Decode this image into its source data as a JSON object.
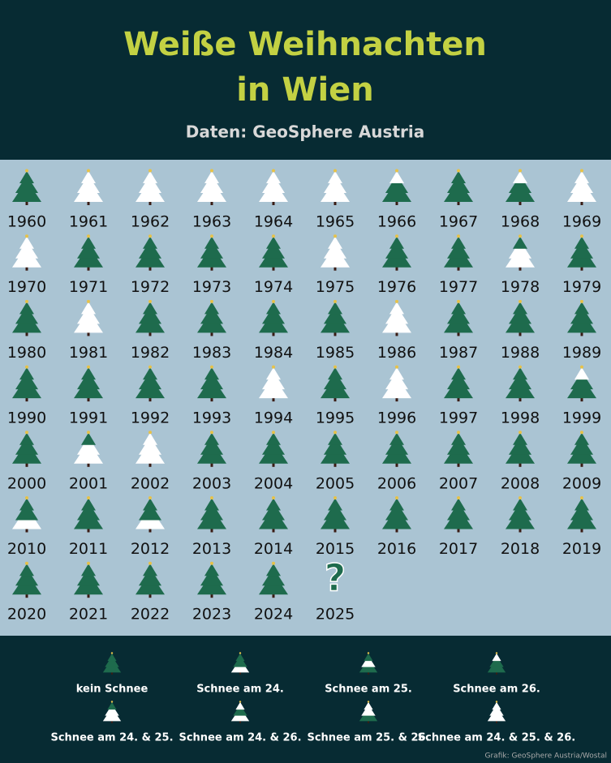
{
  "header": {
    "title": [
      "Weiße Weihnachten",
      "in Wien"
    ],
    "subtitle": "Daten: GeoSphere Austria"
  },
  "years": [
    {
      "year": "1960",
      "snow": []
    },
    {
      "year": "1961",
      "snow": [
        24,
        25,
        26
      ]
    },
    {
      "year": "1962",
      "snow": [
        24,
        25,
        26
      ]
    },
    {
      "year": "1963",
      "snow": [
        24,
        25,
        26
      ]
    },
    {
      "year": "1964",
      "snow": [
        24,
        25,
        26
      ]
    },
    {
      "year": "1965",
      "snow": [
        24,
        25,
        26
      ]
    },
    {
      "year": "1966",
      "snow": [
        26
      ]
    },
    {
      "year": "1967",
      "snow": []
    },
    {
      "year": "1968",
      "snow": [
        26
      ]
    },
    {
      "year": "1969",
      "snow": [
        24,
        25,
        26
      ]
    },
    {
      "year": "1970",
      "snow": [
        24,
        25,
        26
      ]
    },
    {
      "year": "1971",
      "snow": []
    },
    {
      "year": "1972",
      "snow": []
    },
    {
      "year": "1973",
      "snow": []
    },
    {
      "year": "1974",
      "snow": []
    },
    {
      "year": "1975",
      "snow": [
        24,
        25,
        26
      ]
    },
    {
      "year": "1976",
      "snow": []
    },
    {
      "year": "1977",
      "snow": []
    },
    {
      "year": "1978",
      "snow": [
        24,
        25
      ]
    },
    {
      "year": "1979",
      "snow": []
    },
    {
      "year": "1980",
      "snow": []
    },
    {
      "year": "1981",
      "snow": [
        24,
        25,
        26
      ]
    },
    {
      "year": "1982",
      "snow": []
    },
    {
      "year": "1983",
      "snow": []
    },
    {
      "year": "1984",
      "snow": []
    },
    {
      "year": "1985",
      "snow": []
    },
    {
      "year": "1986",
      "snow": [
        24,
        25,
        26
      ]
    },
    {
      "year": "1987",
      "snow": []
    },
    {
      "year": "1988",
      "snow": []
    },
    {
      "year": "1989",
      "snow": []
    },
    {
      "year": "1990",
      "snow": []
    },
    {
      "year": "1991",
      "snow": []
    },
    {
      "year": "1992",
      "snow": []
    },
    {
      "year": "1993",
      "snow": []
    },
    {
      "year": "1994",
      "snow": [
        24,
        25,
        26
      ]
    },
    {
      "year": "1995",
      "snow": []
    },
    {
      "year": "1996",
      "snow": [
        24,
        25,
        26
      ]
    },
    {
      "year": "1997",
      "snow": []
    },
    {
      "year": "1998",
      "snow": []
    },
    {
      "year": "1999",
      "snow": [
        26
      ]
    },
    {
      "year": "2000",
      "snow": []
    },
    {
      "year": "2001",
      "snow": [
        24,
        25
      ]
    },
    {
      "year": "2002",
      "snow": [
        24,
        25,
        26
      ]
    },
    {
      "year": "2003",
      "snow": []
    },
    {
      "year": "2004",
      "snow": []
    },
    {
      "year": "2005",
      "snow": []
    },
    {
      "year": "2006",
      "snow": []
    },
    {
      "year": "2007",
      "snow": []
    },
    {
      "year": "2008",
      "snow": []
    },
    {
      "year": "2009",
      "snow": []
    },
    {
      "year": "2010",
      "snow": [
        24
      ]
    },
    {
      "year": "2011",
      "snow": []
    },
    {
      "year": "2012",
      "snow": [
        24
      ]
    },
    {
      "year": "2013",
      "snow": []
    },
    {
      "year": "2014",
      "snow": []
    },
    {
      "year": "2015",
      "snow": []
    },
    {
      "year": "2016",
      "snow": []
    },
    {
      "year": "2017",
      "snow": []
    },
    {
      "year": "2018",
      "snow": []
    },
    {
      "year": "2019",
      "snow": []
    },
    {
      "year": "2020",
      "snow": []
    },
    {
      "year": "2021",
      "snow": []
    },
    {
      "year": "2022",
      "snow": []
    },
    {
      "year": "2023",
      "snow": []
    },
    {
      "year": "2024",
      "snow": []
    },
    {
      "year": "2025",
      "mark": "?"
    }
  ],
  "legend": [
    {
      "label": "kein Schnee",
      "snow": []
    },
    {
      "label": "Schnee am 24.",
      "snow": [
        24
      ]
    },
    {
      "label": "Schnee am 25.",
      "snow": [
        25
      ]
    },
    {
      "label": "Schnee am 26.",
      "snow": [
        26
      ]
    },
    {
      "label": "Schnee am 24. & 25.",
      "snow": [
        24,
        25
      ]
    },
    {
      "label": "Schnee am 24. & 26.",
      "snow": [
        24,
        26
      ]
    },
    {
      "label": "Schnee am 25. & 26.",
      "snow": [
        25,
        26
      ]
    },
    {
      "label": "Schnee am 24. & 25. & 26.",
      "snow": [
        24,
        25,
        26
      ]
    }
  ],
  "credit": "Grafik: GeoSphere Austria/Wostal"
}
